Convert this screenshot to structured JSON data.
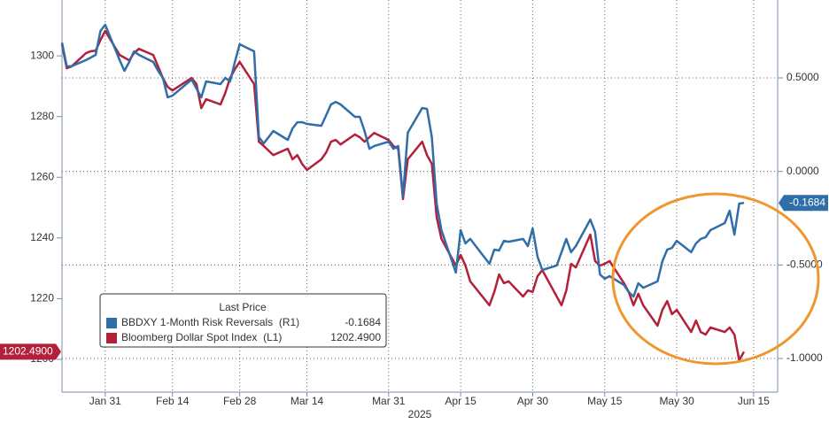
{
  "chart_data": {
    "type": "line",
    "x_label": "2025",
    "legend_title": "Last Price",
    "grid": true,
    "xlim": [
      "2025-01-22",
      "2025-06-20"
    ],
    "xticks": [
      {
        "value": "2025-01-31",
        "label": "Jan 31"
      },
      {
        "value": "2025-02-14",
        "label": "Feb 14"
      },
      {
        "value": "2025-02-28",
        "label": "Feb 28"
      },
      {
        "value": "2025-03-14",
        "label": "Mar 14"
      },
      {
        "value": "2025-03-31",
        "label": "Mar 31"
      },
      {
        "value": "2025-04-15",
        "label": "Apr 15"
      },
      {
        "value": "2025-04-30",
        "label": "Apr 30"
      },
      {
        "value": "2025-05-15",
        "label": "May 15"
      },
      {
        "value": "2025-05-30",
        "label": "May 30"
      },
      {
        "value": "2025-06-15",
        "label": "Jun 15"
      }
    ],
    "ylim": [
      1189.2,
      1318.4
    ],
    "yticks": [
      1200,
      1220,
      1240,
      1260,
      1280,
      1300
    ],
    "y2lim": [
      -1.18,
      0.9165
    ],
    "y2ticks": [
      {
        "value": 0.5,
        "label": "0.5000"
      },
      {
        "value": 0,
        "label": "0.0000"
      },
      {
        "value": -0.5,
        "label": "-0.5000"
      },
      {
        "value": -1,
        "label": "-1.0000"
      }
    ],
    "x": [
      "2025-01-22",
      "2025-01-23",
      "2025-01-24",
      "2025-01-27",
      "2025-01-28",
      "2025-01-29",
      "2025-01-30",
      "2025-01-31",
      "2025-02-03",
      "2025-02-04",
      "2025-02-05",
      "2025-02-06",
      "2025-02-07",
      "2025-02-10",
      "2025-02-11",
      "2025-02-12",
      "2025-02-13",
      "2025-02-14",
      "2025-02-18",
      "2025-02-19",
      "2025-02-20",
      "2025-02-21",
      "2025-02-24",
      "2025-02-25",
      "2025-02-26",
      "2025-02-27",
      "2025-02-28",
      "2025-03-03",
      "2025-03-04",
      "2025-03-05",
      "2025-03-06",
      "2025-03-07",
      "2025-03-10",
      "2025-03-11",
      "2025-03-12",
      "2025-03-13",
      "2025-03-14",
      "2025-03-17",
      "2025-03-18",
      "2025-03-19",
      "2025-03-20",
      "2025-03-21",
      "2025-03-24",
      "2025-03-25",
      "2025-03-26",
      "2025-03-27",
      "2025-03-28",
      "2025-03-31",
      "2025-04-01",
      "2025-04-02",
      "2025-04-03",
      "2025-04-04",
      "2025-04-07",
      "2025-04-08",
      "2025-04-09",
      "2025-04-10",
      "2025-04-11",
      "2025-04-14",
      "2025-04-15",
      "2025-04-16",
      "2025-04-17",
      "2025-04-21",
      "2025-04-22",
      "2025-04-23",
      "2025-04-24",
      "2025-04-25",
      "2025-04-28",
      "2025-04-29",
      "2025-04-30",
      "2025-05-01",
      "2025-05-02",
      "2025-05-05",
      "2025-05-06",
      "2025-05-07",
      "2025-05-08",
      "2025-05-09",
      "2025-05-12",
      "2025-05-13",
      "2025-05-14",
      "2025-05-15",
      "2025-05-16",
      "2025-05-19",
      "2025-05-20",
      "2025-05-21",
      "2025-05-22",
      "2025-05-23",
      "2025-05-26",
      "2025-05-27",
      "2025-05-28",
      "2025-05-29",
      "2025-05-30",
      "2025-06-02",
      "2025-06-03",
      "2025-06-04",
      "2025-06-05",
      "2025-06-06",
      "2025-06-09",
      "2025-06-10",
      "2025-06-11",
      "2025-06-12",
      "2025-06-13"
    ],
    "series": [
      {
        "name": "BBDXY 1-Month Risk Reversals  (R1)",
        "color": "#2f6ea8",
        "axis": "y2",
        "last_label": "-0.1684",
        "values": [
          0.689,
          0.562,
          0.562,
          0.595,
          0.609,
          0.623,
          0.751,
          0.784,
          0.595,
          0.538,
          0.585,
          0.642,
          0.623,
          0.585,
          0.538,
          0.5,
          0.396,
          0.405,
          0.491,
          0.443,
          0.396,
          0.481,
          0.467,
          0.5,
          0.481,
          0.585,
          0.68,
          0.642,
          0.183,
          0.15,
          0.183,
          0.216,
          0.169,
          0.23,
          0.263,
          0.263,
          0.254,
          0.244,
          0.301,
          0.358,
          0.372,
          0.358,
          0.292,
          0.292,
          0.216,
          0.121,
          0.136,
          0.159,
          0.121,
          0.136,
          -0.134,
          0.207,
          0.339,
          0.334,
          0.183,
          -0.172,
          -0.314,
          -0.541,
          -0.314,
          -0.385,
          -0.361,
          -0.494,
          -0.418,
          -0.423,
          -0.371,
          -0.376,
          -0.361,
          -0.399,
          -0.305,
          -0.456,
          -0.527,
          -0.503,
          -0.432,
          -0.361,
          -0.432,
          -0.399,
          -0.257,
          -0.323,
          -0.551,
          -0.574,
          -0.56,
          -0.607,
          -0.645,
          -0.669,
          -0.598,
          -0.622,
          -0.588,
          -0.48,
          -0.418,
          -0.409,
          -0.371,
          -0.432,
          -0.385,
          -0.361,
          -0.352,
          -0.314,
          -0.276,
          -0.21,
          -0.338,
          -0.172,
          -0.1684
        ]
      },
      {
        "name": "Bloomberg Dollar Spot Index  (L1)",
        "color": "#b3203a",
        "axis": "y",
        "last_label": "1202.4900",
        "values": [
          1303.8,
          1295.9,
          1296.5,
          1300.9,
          1301.5,
          1301.7,
          1305.2,
          1308.2,
          1300.3,
          1299.4,
          1298.5,
          1300.9,
          1302.3,
          1300.3,
          1296.5,
          1292.7,
          1289.8,
          1288.6,
          1292.7,
          1290.7,
          1282.8,
          1285.7,
          1284.0,
          1287.8,
          1292.7,
          1295.6,
          1298.0,
          1290.7,
          1271.7,
          1270.3,
          1268.8,
          1267.3,
          1269.4,
          1265.9,
          1267.3,
          1264.4,
          1262.4,
          1265.9,
          1268.2,
          1271.7,
          1272.3,
          1270.8,
          1274.1,
          1273.2,
          1271.7,
          1273.2,
          1274.6,
          1272.3,
          1270.3,
          1269.4,
          1252.8,
          1265.9,
          1271.7,
          1267.3,
          1264.4,
          1246.9,
          1239.7,
          1230.9,
          1234.4,
          1230.9,
          1225.7,
          1217.8,
          1222.2,
          1228.0,
          1225.1,
          1225.7,
          1220.7,
          1222.7,
          1222.2,
          1227.4,
          1229.4,
          1220.7,
          1217.8,
          1222.7,
          1231.5,
          1230.3,
          1241.1,
          1232.4,
          1230.9,
          1231.5,
          1232.4,
          1225.1,
          1222.2,
          1217.8,
          1221.6,
          1217.8,
          1211.1,
          1216.3,
          1219.2,
          1214.9,
          1216.3,
          1209.0,
          1212.8,
          1209.0,
          1208.2,
          1210.5,
          1209.0,
          1210.5,
          1208.2,
          1199.7,
          1202.49
        ]
      }
    ]
  }
}
